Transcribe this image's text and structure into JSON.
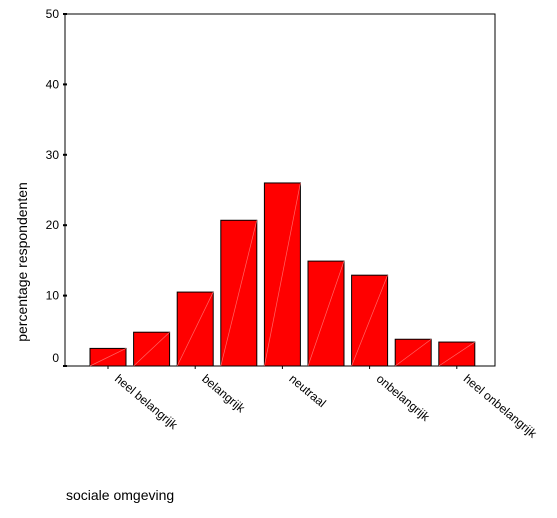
{
  "chart_data": {
    "type": "bar",
    "title": "",
    "xlabel": "sociale omgeving",
    "ylabel": "percentage respondenten",
    "ylim": [
      0,
      50
    ],
    "yticks": [
      "0",
      "10",
      "20",
      "30",
      "40",
      "50"
    ],
    "x_tick_labels": [
      "heel belangrijk",
      "belangrijk",
      "neutraal",
      "onbelangrijk",
      "heel onbelangrijk"
    ],
    "values": [
      2.5,
      4.8,
      10.5,
      20.7,
      26.0,
      14.9,
      12.9,
      3.8,
      3.4
    ],
    "bar_color": "#ff0000",
    "grid": false,
    "legend": "none"
  }
}
